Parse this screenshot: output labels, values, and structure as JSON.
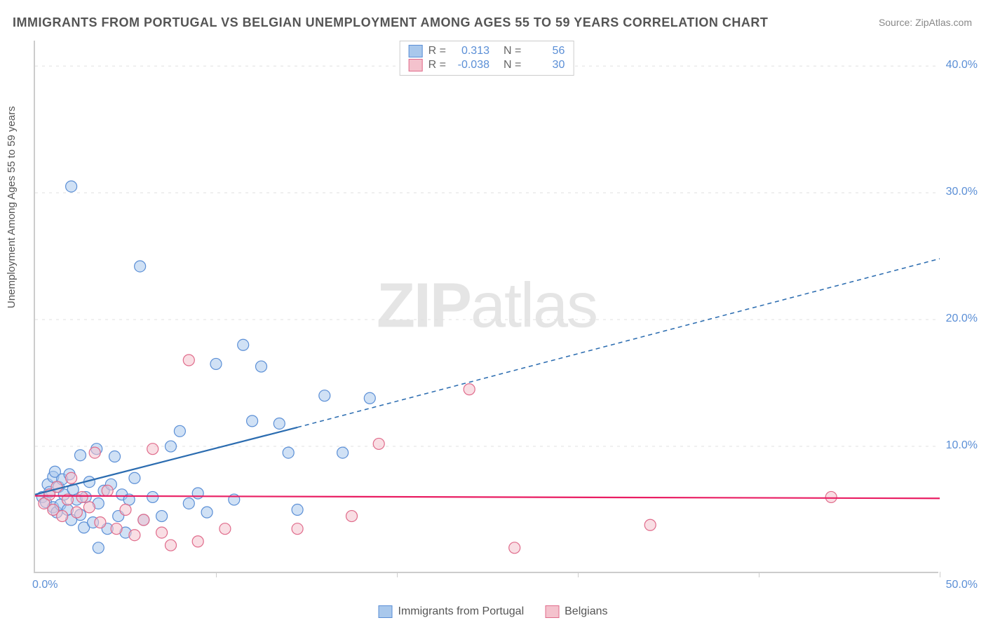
{
  "title": "IMMIGRANTS FROM PORTUGAL VS BELGIAN UNEMPLOYMENT AMONG AGES 55 TO 59 YEARS CORRELATION CHART",
  "source": "Source: ZipAtlas.com",
  "y_axis_label": "Unemployment Among Ages 55 to 59 years",
  "watermark_bold": "ZIP",
  "watermark_light": "atlas",
  "chart": {
    "type": "scatter",
    "xlim": [
      0,
      50
    ],
    "ylim": [
      0,
      42
    ],
    "x_ticks": [
      0,
      10,
      20,
      30,
      40,
      50
    ],
    "x_tick_labels": {
      "0": "0.0%",
      "50": "50.0%"
    },
    "y_ticks": [
      10,
      20,
      30,
      40
    ],
    "y_tick_labels": {
      "10": "10.0%",
      "20": "20.0%",
      "30": "30.0%",
      "40": "40.0%"
    },
    "grid_color": "#e0e0e0",
    "axis_color": "#cccccc",
    "background_color": "#ffffff",
    "marker_radius": 8,
    "marker_stroke_width": 1.2,
    "series": [
      {
        "name": "Immigrants from Portugal",
        "fill": "#a9c8ec",
        "stroke": "#5b8fd6",
        "fill_opacity": 0.55,
        "R": "0.313",
        "N": "56",
        "trend": {
          "solid_from": [
            0,
            6.2
          ],
          "solid_to": [
            14.5,
            11.5
          ],
          "dash_from": [
            14.5,
            11.5
          ],
          "dash_to": [
            50,
            24.8
          ],
          "color": "#2b6cb0",
          "width": 2.2,
          "dash": "6,5"
        },
        "points": [
          [
            0.4,
            6.0
          ],
          [
            0.6,
            5.6
          ],
          [
            0.7,
            7.0
          ],
          [
            0.8,
            6.4
          ],
          [
            1.0,
            5.2
          ],
          [
            1.0,
            7.6
          ],
          [
            1.1,
            8.0
          ],
          [
            1.2,
            4.8
          ],
          [
            1.3,
            6.8
          ],
          [
            1.4,
            5.4
          ],
          [
            1.5,
            7.4
          ],
          [
            1.6,
            6.2
          ],
          [
            1.8,
            5.0
          ],
          [
            1.9,
            7.8
          ],
          [
            2.0,
            4.2
          ],
          [
            2.0,
            30.5
          ],
          [
            2.1,
            6.6
          ],
          [
            2.3,
            5.8
          ],
          [
            2.5,
            4.6
          ],
          [
            2.5,
            9.3
          ],
          [
            2.7,
            3.6
          ],
          [
            2.8,
            6.0
          ],
          [
            3.0,
            7.2
          ],
          [
            3.2,
            4.0
          ],
          [
            3.4,
            9.8
          ],
          [
            3.5,
            5.5
          ],
          [
            3.5,
            2.0
          ],
          [
            3.8,
            6.5
          ],
          [
            4.0,
            3.5
          ],
          [
            4.2,
            7.0
          ],
          [
            4.4,
            9.2
          ],
          [
            4.6,
            4.5
          ],
          [
            4.8,
            6.2
          ],
          [
            5.0,
            3.2
          ],
          [
            5.2,
            5.8
          ],
          [
            5.5,
            7.5
          ],
          [
            5.8,
            24.2
          ],
          [
            6.0,
            4.2
          ],
          [
            6.5,
            6.0
          ],
          [
            7.0,
            4.5
          ],
          [
            7.5,
            10.0
          ],
          [
            8.0,
            11.2
          ],
          [
            8.5,
            5.5
          ],
          [
            9.0,
            6.3
          ],
          [
            9.5,
            4.8
          ],
          [
            10.0,
            16.5
          ],
          [
            11.0,
            5.8
          ],
          [
            11.5,
            18.0
          ],
          [
            12.0,
            12.0
          ],
          [
            12.5,
            16.3
          ],
          [
            13.5,
            11.8
          ],
          [
            14.0,
            9.5
          ],
          [
            14.5,
            5.0
          ],
          [
            16.0,
            14.0
          ],
          [
            17.0,
            9.5
          ],
          [
            18.5,
            13.8
          ]
        ]
      },
      {
        "name": "Belgians",
        "fill": "#f4c2cd",
        "stroke": "#e06b8b",
        "fill_opacity": 0.55,
        "R": "-0.038",
        "N": "30",
        "trend": {
          "solid_from": [
            0,
            6.1
          ],
          "solid_to": [
            50,
            5.9
          ],
          "dash_from": null,
          "dash_to": null,
          "color": "#e91e63",
          "width": 2.2,
          "dash": null
        },
        "points": [
          [
            0.5,
            5.5
          ],
          [
            0.8,
            6.2
          ],
          [
            1.0,
            5.0
          ],
          [
            1.2,
            6.8
          ],
          [
            1.5,
            4.5
          ],
          [
            1.8,
            5.8
          ],
          [
            2.0,
            7.5
          ],
          [
            2.3,
            4.8
          ],
          [
            2.6,
            6.0
          ],
          [
            3.0,
            5.2
          ],
          [
            3.3,
            9.5
          ],
          [
            3.6,
            4.0
          ],
          [
            4.0,
            6.5
          ],
          [
            4.5,
            3.5
          ],
          [
            5.0,
            5.0
          ],
          [
            5.5,
            3.0
          ],
          [
            6.0,
            4.2
          ],
          [
            6.5,
            9.8
          ],
          [
            7.0,
            3.2
          ],
          [
            7.5,
            2.2
          ],
          [
            8.5,
            16.8
          ],
          [
            9.0,
            2.5
          ],
          [
            10.5,
            3.5
          ],
          [
            14.5,
            3.5
          ],
          [
            17.5,
            4.5
          ],
          [
            19.0,
            10.2
          ],
          [
            24.0,
            14.5
          ],
          [
            26.5,
            2.0
          ],
          [
            34.0,
            3.8
          ],
          [
            44.0,
            6.0
          ]
        ]
      }
    ]
  },
  "stats_labels": {
    "R": "R =",
    "N": "N ="
  },
  "legend": {
    "series1": "Immigrants from Portugal",
    "series2": "Belgians"
  }
}
